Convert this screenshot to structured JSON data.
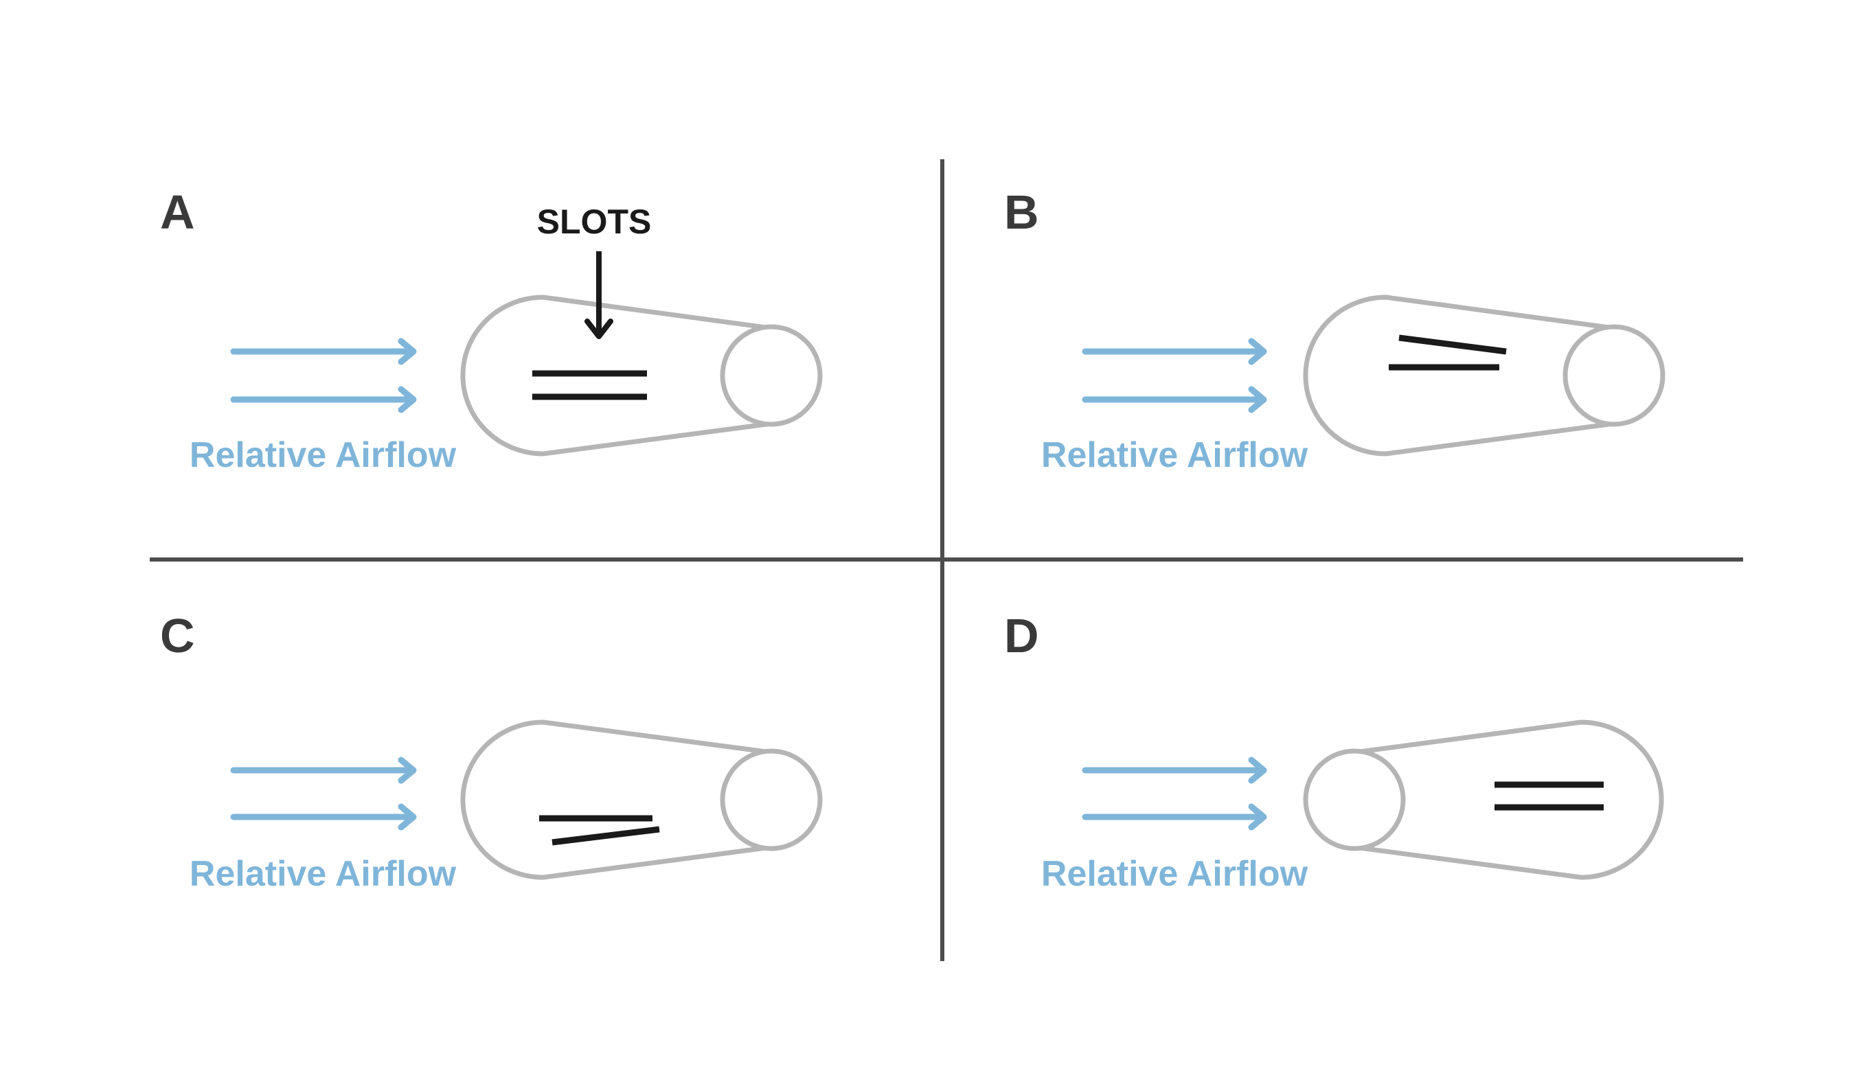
{
  "panels": [
    {
      "letter": "A",
      "airflow_label": "Relative Airflow",
      "callout": "SLOTS"
    },
    {
      "letter": "B",
      "airflow_label": "Relative Airflow"
    },
    {
      "letter": "C",
      "airflow_label": "Relative Airflow"
    },
    {
      "letter": "D",
      "airflow_label": "Relative Airflow"
    }
  ],
  "colors": {
    "airflow": "#7fb5d9",
    "outline": "#b5b5b5",
    "slots": "#1a1a1a",
    "divider": "#4d4d4d",
    "letters": "#3a3a3a",
    "callout": "#1a1a1a"
  }
}
